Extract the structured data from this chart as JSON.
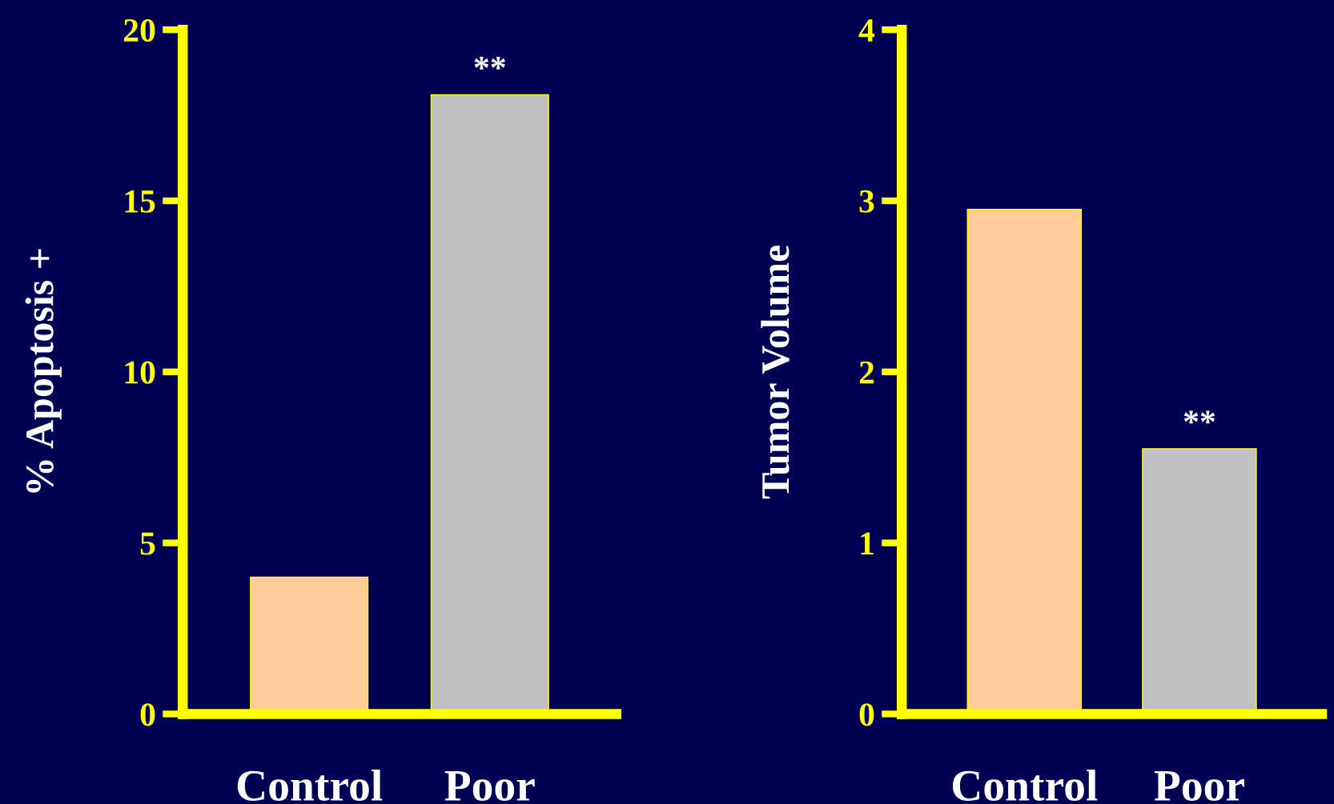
{
  "chart_data": [
    {
      "type": "bar",
      "ylabel": "% Apoptosis +",
      "categories": [
        "Control",
        "Poor"
      ],
      "values": [
        4.0,
        18.1
      ],
      "colors": [
        "#ffcc99",
        "#c0c0c0"
      ],
      "ylim": [
        0,
        20
      ],
      "yticks": [
        0,
        5,
        10,
        15,
        20
      ],
      "grid": false,
      "annotations": [
        {
          "text": "**",
          "x": "Poor",
          "y": 18.1
        }
      ]
    },
    {
      "type": "bar",
      "ylabel": "Tumor Volume",
      "categories": [
        "Control",
        "Poor"
      ],
      "values": [
        2.95,
        1.55
      ],
      "colors": [
        "#ffcc99",
        "#c0c0c0"
      ],
      "ylim": [
        0,
        4
      ],
      "yticks": [
        0,
        1,
        2,
        3,
        4
      ],
      "grid": false,
      "annotations": [
        {
          "text": "**",
          "x": "Poor",
          "y": 1.55
        }
      ]
    }
  ]
}
